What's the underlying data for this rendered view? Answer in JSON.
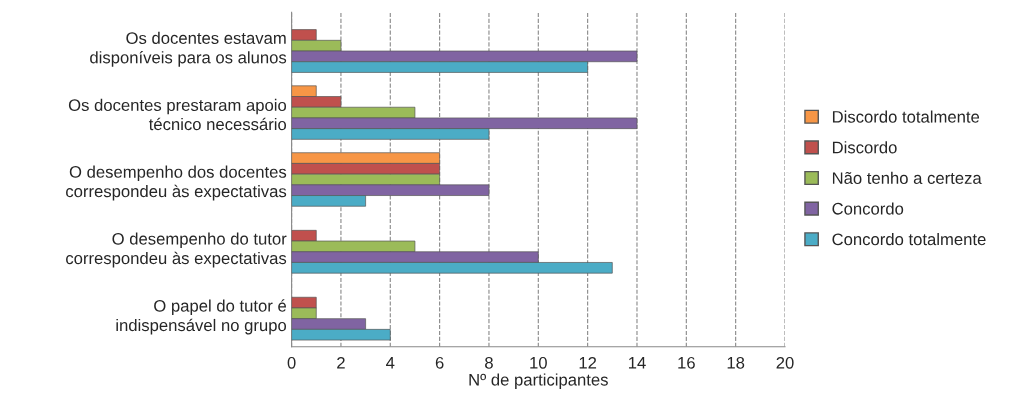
{
  "chart_data": {
    "type": "bar",
    "orientation": "horizontal",
    "xlabel": "Nº de participantes",
    "categories": [
      "Os docentes estavam\ndisponíveis para os alunos",
      "Os docentes prestaram apoio\ntécnico necessário",
      "O desempenho dos docentes\ncorrespondeu às expectativas",
      "O desempenho do tutor\ncorrespondeu às expectativas",
      "O papel do tutor é\nindispensável no grupo"
    ],
    "series": [
      {
        "name": "Discordo totalmente",
        "color": "#f79646",
        "values": [
          null,
          1,
          6,
          null,
          null
        ]
      },
      {
        "name": "Discordo",
        "color": "#c0504d",
        "values": [
          1,
          2,
          6,
          1,
          1
        ]
      },
      {
        "name": "Não tenho a certeza",
        "color": "#9bbb59",
        "values": [
          2,
          5,
          6,
          5,
          1
        ]
      },
      {
        "name": "Concordo",
        "color": "#8064a2",
        "values": [
          14,
          14,
          8,
          10,
          3
        ]
      },
      {
        "name": "Concordo totalmente",
        "color": "#4bacc6",
        "values": [
          12,
          8,
          3,
          13,
          4
        ]
      }
    ],
    "xlim": [
      0,
      20
    ],
    "xticks": [
      0,
      2,
      4,
      6,
      8,
      10,
      12,
      14,
      16,
      18,
      20
    ],
    "grid": "x",
    "legend": "right"
  }
}
